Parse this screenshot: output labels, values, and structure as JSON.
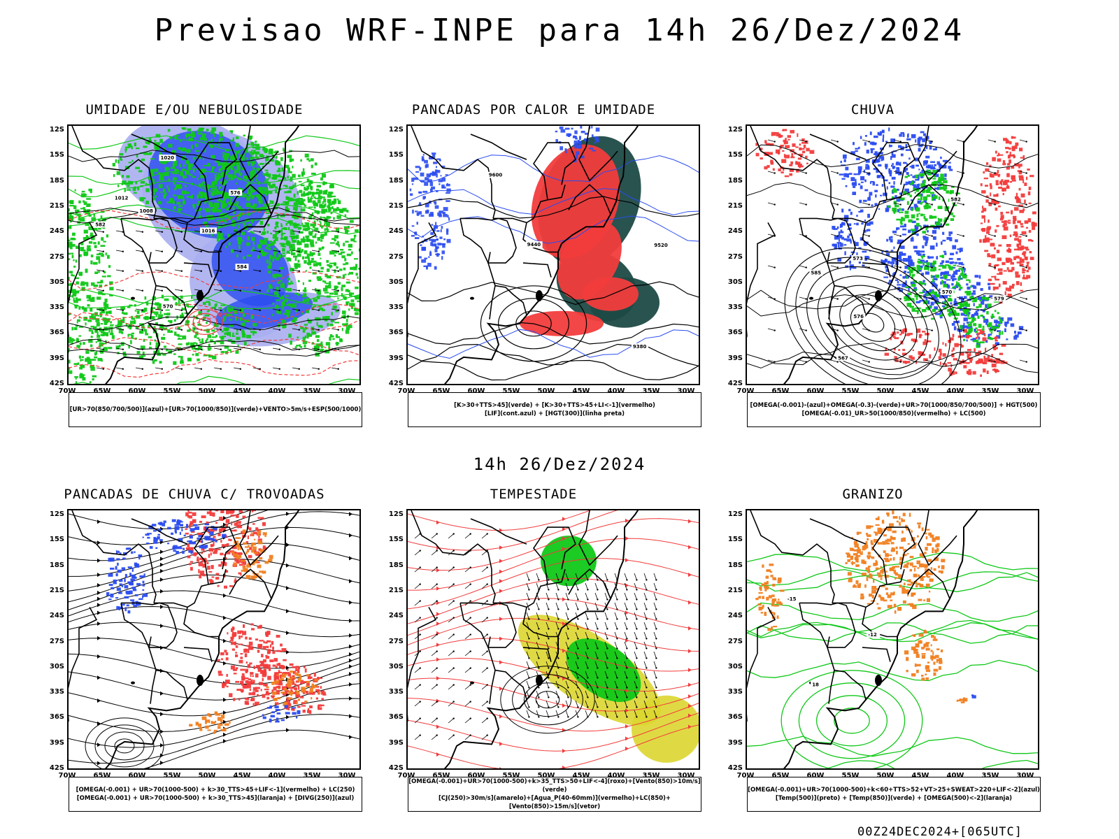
{
  "title": "Previsao WRF-INPE  para 14h 26/Dez/2024",
  "mid_title": "14h 26/Dez/2024",
  "footer": "00Z24DEC2024+[065UTC]",
  "axes": {
    "lat_labels": [
      "12S",
      "15S",
      "18S",
      "21S",
      "24S",
      "27S",
      "30S",
      "33S",
      "36S",
      "39S",
      "42S"
    ],
    "lon_labels": [
      "70W",
      "65W",
      "60W",
      "55W",
      "50W",
      "45W",
      "40W",
      "35W",
      "30W"
    ]
  },
  "colors": {
    "blue": "#2a4cf0",
    "light_blue": "#a9aef0",
    "green": "#10c818",
    "red": "#f23c3c",
    "orange": "#f07f20",
    "yellow": "#dcd630",
    "dark_teal": "#1e4a46"
  },
  "panels": [
    {
      "title": "UMIDADE E/OU NEBULOSIDADE",
      "legend": [
        "[UR>70(850/700/500)](azul)+[UR>70(1000/850)](verde)+VENTO>5m/s+ESP(500/1000)"
      ],
      "contour_labels": [
        "1008",
        "1012",
        "1016",
        "1020",
        "570",
        "576",
        "582",
        "584"
      ]
    },
    {
      "title": "PANCADAS POR CALOR E UMIDADE",
      "legend": [
        "[K>30+TTS>45](verde) + [K>30+TTS>45+LI<-1](vermelho)",
        "[LIF](cont.azul) + [HGT(300)](linha preta)"
      ],
      "contour_labels": [
        "9600",
        "9520",
        "9440",
        "9380"
      ]
    },
    {
      "title": "CHUVA",
      "legend": [
        "[OMEGA(-0.001)-(azul)+OMEGA(-0.3)-(verde)+UR>70(1000/850/700/500)] + HGT(500)",
        "[OMEGA(-0.01)_UR>50(1000/850)(vermelho) + LC(500)"
      ],
      "contour_labels": [
        "567",
        "570",
        "573",
        "576",
        "579",
        "582",
        "585"
      ]
    },
    {
      "title": "PANCADAS DE CHUVA C/ TROVOADAS",
      "legend": [
        "[OMEGA(-0.001) + UR>70(1000-500) + k>30_TTS>45+LIF<-1](vermelho) + LC(250)",
        "[OMEGA(-0.001) + UR>70(1000-500) + k>30_TTS>45](laranja) + [DIVG(250)](azul)"
      ],
      "contour_labels": []
    },
    {
      "title": "TEMPESTADE",
      "legend": [
        "[OMEGA(-0.001)+UR>70(1000-500)+k>35_TTS>50+LIF<-4](roxo)+[Vento(850)>10m/s](verde)",
        "[CJ(250)>30m/s](amarelo)+[Agua_P(40-60mm)](vermelho)+LC(850)+[Vento(850)>15m/s](vetor)"
      ],
      "contour_labels": []
    },
    {
      "title": "GRANIZO",
      "legend": [
        "[OMEGA(-0.001)+UR>70(1000-500)+k<60+TTS>52+VT>25+SWEAT>220+LIF<-2](azul)",
        "[Temp(500)](preto) + [Temp(850)](verde) + [OMEGA(500)<-2](laranja)"
      ],
      "contour_labels": [
        "-12",
        "-15",
        "18"
      ]
    }
  ]
}
